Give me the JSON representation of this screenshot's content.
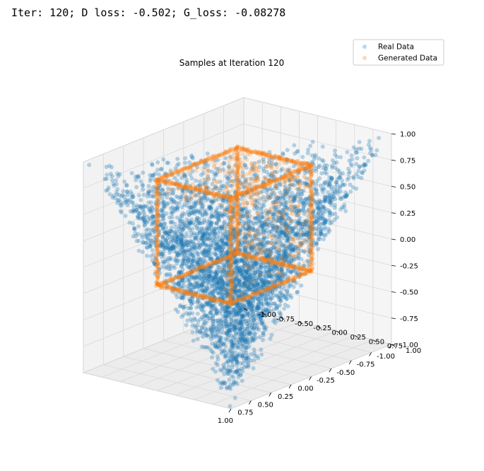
{
  "output": {
    "log_line": "Iter: 120; D loss: -0.502; G_loss: -0.08278"
  },
  "colors": {
    "real": "#1f77b4",
    "generated": "#ff7f0e",
    "pane": "#f2f2f2",
    "grid": "#d9d9d9"
  },
  "chart_data": {
    "type": "scatter",
    "projection": "3d",
    "title": "Samples at Iteration 120",
    "legend": {
      "placement": "top-right",
      "entries": [
        "Real Data",
        "Generated Data"
      ]
    },
    "xlim": [
      -1.0,
      1.0
    ],
    "ylim": [
      -1.0,
      1.0
    ],
    "zlim": [
      -1.0,
      1.0
    ],
    "x_ticks": [
      "-1.00",
      "-0.75",
      "-0.50",
      "-0.25",
      "0.00",
      "0.25",
      "0.50",
      "0.75",
      "1.00"
    ],
    "y_ticks": [
      "-1.00",
      "-0.75",
      "-0.50",
      "-0.25",
      "0.00",
      "0.25",
      "0.50",
      "0.75",
      "1.00"
    ],
    "z_ticks": [
      "-1.00",
      "-0.75",
      "-0.50",
      "-0.25",
      "0.00",
      "0.25",
      "0.50",
      "0.75",
      "1.00"
    ],
    "grid": true,
    "series": [
      {
        "name": "Real Data",
        "color": "#1f77b4",
        "alpha": 0.3,
        "shape": "tetrahedron",
        "vertices": [
          [
            -1,
            -1,
            -1
          ],
          [
            1,
            1,
            -1
          ],
          [
            1,
            -1,
            1
          ],
          [
            -1,
            1,
            1
          ]
        ],
        "approx_points": 6000
      },
      {
        "name": "Generated Data",
        "color": "#ff7f0e",
        "alpha": 0.3,
        "shape": "cube-edges",
        "bounds": [
          [
            0.0,
            1.0
          ],
          [
            0.0,
            1.0
          ],
          [
            0.0,
            1.0
          ]
        ],
        "approx_points": 2000
      }
    ]
  }
}
